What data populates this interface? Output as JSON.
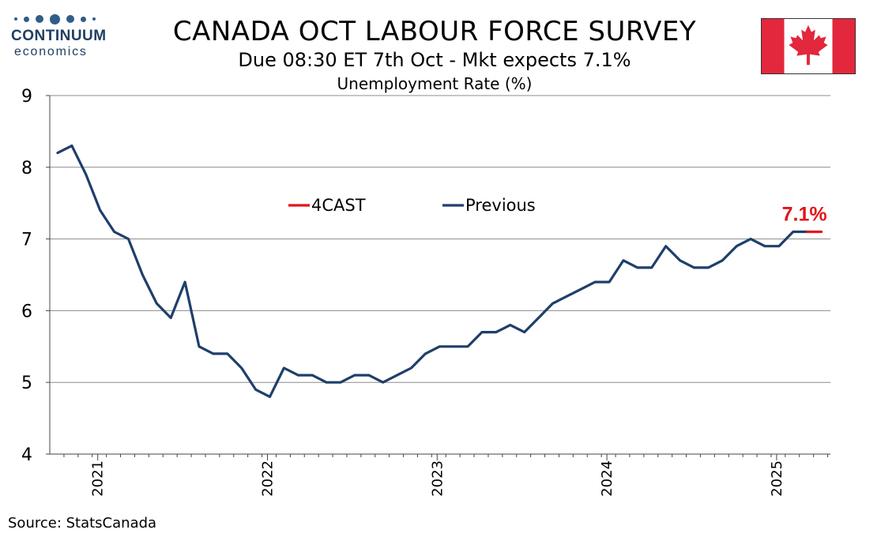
{
  "header": {
    "title": "CANADA OCT LABOUR FORCE SURVEY",
    "subtitle": "Due 08:30 ET 7th Oct - Mkt expects 7.1%"
  },
  "logo": {
    "name": "CONTINUUM",
    "sub": "economics",
    "color": "#2f5d8a"
  },
  "flag": {
    "icon": "canada-flag-icon",
    "red": "#e3273c"
  },
  "footer": {
    "source": "Source: StatsCanada"
  },
  "chart_data": {
    "type": "line",
    "title": "Unemployment Rate (%)",
    "ylim": [
      4,
      9
    ],
    "yticks": [
      4,
      5,
      6,
      7,
      8,
      9
    ],
    "grid": true,
    "legend_position": "top-center",
    "xticks": [
      "2021",
      "2022",
      "2023",
      "2024",
      "2025"
    ],
    "x_start": "2020-10",
    "annotation": {
      "label": "7.1%",
      "color": "#e3141b"
    },
    "series": [
      {
        "name": "Previous",
        "color": "#1f3f6a",
        "values": [
          8.2,
          8.3,
          7.9,
          7.4,
          7.1,
          7.0,
          6.5,
          6.1,
          5.9,
          6.4,
          5.5,
          5.4,
          5.4,
          5.2,
          4.9,
          4.8,
          5.2,
          5.1,
          5.1,
          5.0,
          5.0,
          5.1,
          5.1,
          5.0,
          5.1,
          5.2,
          5.4,
          5.5,
          5.5,
          5.5,
          5.7,
          5.7,
          5.8,
          5.7,
          5.9,
          6.1,
          6.2,
          6.3,
          6.4,
          6.4,
          6.7,
          6.6,
          6.6,
          6.9,
          6.7,
          6.6,
          6.6,
          6.7,
          6.9,
          7.0,
          6.9,
          6.9,
          7.1,
          7.1,
          null
        ]
      },
      {
        "name": "4CAST",
        "color": "#e3141b",
        "values": [
          null,
          null,
          null,
          null,
          null,
          null,
          null,
          null,
          null,
          null,
          null,
          null,
          null,
          null,
          null,
          null,
          null,
          null,
          null,
          null,
          null,
          null,
          null,
          null,
          null,
          null,
          null,
          null,
          null,
          null,
          null,
          null,
          null,
          null,
          null,
          null,
          null,
          null,
          null,
          null,
          null,
          null,
          null,
          null,
          null,
          null,
          null,
          null,
          null,
          null,
          null,
          null,
          null,
          7.1,
          7.1
        ]
      }
    ]
  }
}
